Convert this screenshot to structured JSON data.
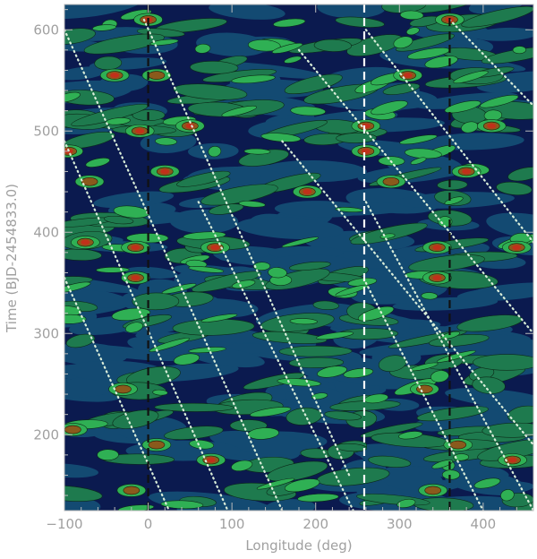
{
  "chart_data": {
    "type": "heatmap",
    "title": "",
    "xlabel": "Longitude (deg)",
    "ylabel": "Time (BJD-2454833.0)",
    "xlim": [
      -100,
      460
    ],
    "ylim": [
      125,
      625
    ],
    "x_ticks": [
      -100,
      0,
      100,
      200,
      300,
      400
    ],
    "y_ticks": [
      200,
      300,
      400,
      500,
      600
    ],
    "x_tick_labels": [
      "−100",
      "0",
      "100",
      "200",
      "300",
      "400"
    ],
    "y_tick_labels": [
      "200",
      "300",
      "400",
      "500",
      "600"
    ],
    "grid": false,
    "legend": "none",
    "contour_levels": 5,
    "colormap": [
      "#0b1a4f",
      "#134a72",
      "#1e7a4e",
      "#2fb054",
      "#8a5a1c",
      "#c0311a"
    ],
    "vertical_lines": [
      {
        "x": 0,
        "style": "dashed",
        "color": "#111111"
      },
      {
        "x": 258,
        "style": "dashed",
        "color": "#ffffff"
      },
      {
        "x": 360,
        "style": "dashed",
        "color": "#111111"
      }
    ],
    "dotted_tracks": [
      {
        "x1": -100,
        "y1": 600,
        "x2": 160,
        "y2": 125
      },
      {
        "x1": -100,
        "y1": 490,
        "x2": 95,
        "y2": 125
      },
      {
        "x1": -100,
        "y1": 355,
        "x2": 25,
        "y2": 125
      },
      {
        "x1": -5,
        "y1": 610,
        "x2": 240,
        "y2": 160
      },
      {
        "x1": 60,
        "y1": 430,
        "x2": 245,
        "y2": 125
      },
      {
        "x1": 160,
        "y1": 490,
        "x2": 460,
        "y2": 190
      },
      {
        "x1": 180,
        "y1": 580,
        "x2": 460,
        "y2": 300
      },
      {
        "x1": 260,
        "y1": 600,
        "x2": 460,
        "y2": 390
      },
      {
        "x1": 260,
        "y1": 430,
        "x2": 460,
        "y2": 125
      },
      {
        "x1": 260,
        "y1": 350,
        "x2": 400,
        "y2": 125
      },
      {
        "x1": 360,
        "y1": 610,
        "x2": 460,
        "y2": 525
      }
    ],
    "hotspots": [
      {
        "x": 0,
        "y": 610,
        "level": 5
      },
      {
        "x": -40,
        "y": 555,
        "level": 5
      },
      {
        "x": 10,
        "y": 555,
        "level": 4
      },
      {
        "x": -10,
        "y": 500,
        "level": 5
      },
      {
        "x": 50,
        "y": 505,
        "level": 5
      },
      {
        "x": 20,
        "y": 460,
        "level": 5
      },
      {
        "x": -95,
        "y": 480,
        "level": 5
      },
      {
        "x": -70,
        "y": 450,
        "level": 4
      },
      {
        "x": 190,
        "y": 440,
        "level": 5
      },
      {
        "x": -75,
        "y": 390,
        "level": 5
      },
      {
        "x": -15,
        "y": 385,
        "level": 5
      },
      {
        "x": 80,
        "y": 385,
        "level": 5
      },
      {
        "x": -15,
        "y": 355,
        "level": 5
      },
      {
        "x": -30,
        "y": 245,
        "level": 4
      },
      {
        "x": -90,
        "y": 205,
        "level": 4
      },
      {
        "x": 10,
        "y": 190,
        "level": 4
      },
      {
        "x": 75,
        "y": 175,
        "level": 5
      },
      {
        "x": -20,
        "y": 145,
        "level": 4
      },
      {
        "x": 260,
        "y": 505,
        "level": 5
      },
      {
        "x": 260,
        "y": 480,
        "level": 5
      },
      {
        "x": 310,
        "y": 555,
        "level": 5
      },
      {
        "x": 360,
        "y": 610,
        "level": 5
      },
      {
        "x": 410,
        "y": 505,
        "level": 5
      },
      {
        "x": 380,
        "y": 460,
        "level": 5
      },
      {
        "x": 290,
        "y": 450,
        "level": 4
      },
      {
        "x": 345,
        "y": 385,
        "level": 5
      },
      {
        "x": 345,
        "y": 355,
        "level": 5
      },
      {
        "x": 440,
        "y": 385,
        "level": 5
      },
      {
        "x": 330,
        "y": 245,
        "level": 4
      },
      {
        "x": 370,
        "y": 190,
        "level": 4
      },
      {
        "x": 435,
        "y": 175,
        "level": 5
      },
      {
        "x": 340,
        "y": 145,
        "level": 4
      }
    ]
  }
}
